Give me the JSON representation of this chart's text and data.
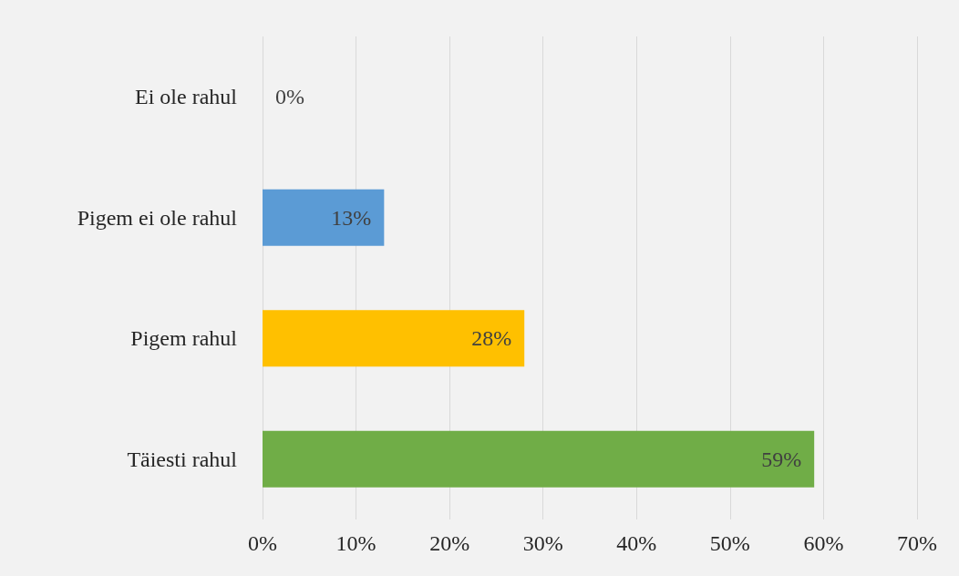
{
  "chart_data": {
    "type": "bar",
    "orientation": "horizontal",
    "categories": [
      "Ei ole rahul",
      "Pigem ei ole rahul",
      "Pigem rahul",
      "Täiesti rahul"
    ],
    "values": [
      0,
      13,
      28,
      59
    ],
    "colors": [
      "#5b9bd5",
      "#5b9bd5",
      "#ffc000",
      "#70ad47"
    ],
    "value_labels": [
      "0%",
      "13%",
      "28%",
      "59%"
    ],
    "xlim": [
      0,
      70
    ],
    "xticks": [
      {
        "value": 0,
        "label": "0%"
      },
      {
        "value": 10,
        "label": "10%"
      },
      {
        "value": 20,
        "label": "20%"
      },
      {
        "value": 30,
        "label": "30%"
      },
      {
        "value": 40,
        "label": "40%"
      },
      {
        "value": 50,
        "label": "50%"
      },
      {
        "value": 60,
        "label": "60%"
      },
      {
        "value": 70,
        "label": "70%"
      }
    ],
    "grid": "x"
  }
}
